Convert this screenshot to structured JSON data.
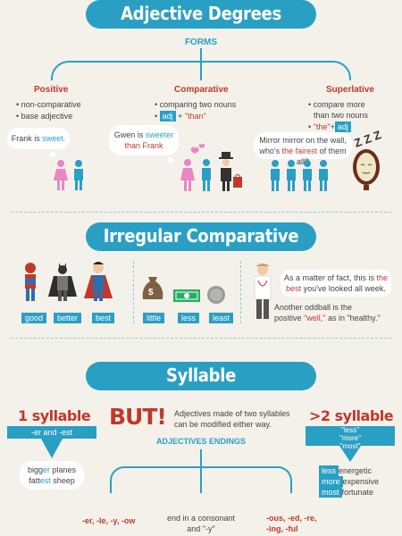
{
  "section1": {
    "title": "Adjective Degrees",
    "forms_label": "FORMS",
    "positive": {
      "head": "Positive",
      "items": [
        "non-comparative",
        "base adjective"
      ],
      "bubble_pre": "Frank is ",
      "bubble_hl": "sweet."
    },
    "comparative": {
      "head": "Comparative",
      "item1": "comparing two nouns",
      "adj": "adj",
      "plus": " + ",
      "than": "\"than\"",
      "bubble_pre": "Gwen is ",
      "bubble_hl": "sweeter",
      "bubble_line2": "than Frank"
    },
    "superlative": {
      "head": "Superlative",
      "item1_a": "compare more",
      "item1_b": "than two nouns",
      "the": "\"the\"",
      "plus": "+",
      "adj": "adj",
      "bubble_line1": "Mirror mirror on the wall,",
      "bubble_pre": "who's ",
      "bubble_hl": "the fairest",
      "bubble_post": " of them all?",
      "zzz": "Z Z Z"
    }
  },
  "section2": {
    "title": "Irregular Comparative",
    "heroes": [
      "good",
      "better",
      "best"
    ],
    "money": [
      "little",
      "less",
      "least"
    ],
    "money_symbol": "$",
    "speech_line1_pre": "As a matter of fact, this is ",
    "speech_line1_hl": "the",
    "speech_line2_hl": "best",
    "speech_line2_post": " you've looked all week.",
    "oddball_line1": "Another oddball is the",
    "oddball_pre": "positive ",
    "oddball_hl": "\"well,\"",
    "oddball_post": " as in \"healthy.\""
  },
  "section3": {
    "title": "Syllable",
    "one_syllable": "1 syllable",
    "er_est": "-er and -est",
    "big_pre": "bigg",
    "big_hl": "er",
    "big_post": " planes",
    "fat_pre": "fatt",
    "fat_hl": "est",
    "fat_post": " sheep",
    "but": "BUT!",
    "but_text_1": "Adjectives made of two syllables",
    "but_text_2": "can be modified either way.",
    "endings_label": "ADJECTIVES ENDINGS",
    "more_syllable": ">2 syllable",
    "less_more_most": [
      "\"less\"",
      "\"more\"",
      "\"most\""
    ],
    "ex_less": "less",
    "ex_less_word": "energetic",
    "ex_more": "more",
    "ex_more_word": "expensive",
    "ex_most": "most",
    "ex_most_word": "fortunate",
    "ending1": "-er, -le, -y, -ow",
    "ending2_a": "end in a consonant",
    "ending2_b": "and \"-y\"",
    "ending3_a": "-ous, -ed, -re,",
    "ending3_b": "-ing, -ful"
  },
  "colors": {
    "accent": "#2a9fc4",
    "red": "#c0392b",
    "pink": "#e986c4",
    "background": "#f4f1ea"
  }
}
